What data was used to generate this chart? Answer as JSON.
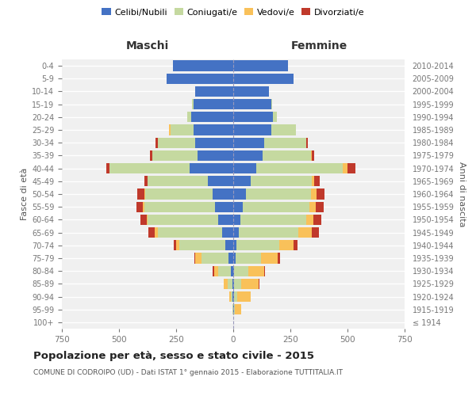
{
  "age_groups": [
    "100+",
    "95-99",
    "90-94",
    "85-89",
    "80-84",
    "75-79",
    "70-74",
    "65-69",
    "60-64",
    "55-59",
    "50-54",
    "45-49",
    "40-44",
    "35-39",
    "30-34",
    "25-29",
    "20-24",
    "15-19",
    "10-14",
    "5-9",
    "0-4"
  ],
  "birth_years": [
    "≤ 1914",
    "1915-1919",
    "1920-1924",
    "1925-1929",
    "1930-1934",
    "1935-1939",
    "1940-1944",
    "1945-1949",
    "1950-1954",
    "1955-1959",
    "1960-1964",
    "1965-1969",
    "1970-1974",
    "1975-1979",
    "1980-1984",
    "1985-1989",
    "1990-1994",
    "1995-1999",
    "2000-2004",
    "2005-2009",
    "2010-2014"
  ],
  "male": {
    "celibi": [
      0,
      1,
      3,
      5,
      10,
      20,
      35,
      50,
      65,
      80,
      90,
      110,
      190,
      155,
      165,
      175,
      185,
      175,
      165,
      290,
      265
    ],
    "coniugati": [
      0,
      2,
      8,
      20,
      55,
      120,
      200,
      280,
      310,
      310,
      295,
      265,
      350,
      200,
      165,
      100,
      15,
      5,
      0,
      0,
      0
    ],
    "vedovi": [
      0,
      0,
      5,
      15,
      20,
      25,
      15,
      15,
      5,
      5,
      5,
      0,
      0,
      0,
      0,
      5,
      0,
      0,
      0,
      0,
      0
    ],
    "divorziati": [
      0,
      0,
      0,
      0,
      5,
      5,
      10,
      25,
      25,
      30,
      30,
      15,
      15,
      10,
      10,
      0,
      0,
      0,
      0,
      0,
      0
    ]
  },
  "female": {
    "nubili": [
      0,
      3,
      3,
      5,
      5,
      10,
      15,
      25,
      30,
      40,
      55,
      75,
      100,
      130,
      135,
      165,
      175,
      165,
      155,
      265,
      240
    ],
    "coniugate": [
      0,
      5,
      15,
      30,
      60,
      110,
      185,
      260,
      290,
      295,
      285,
      270,
      380,
      210,
      185,
      110,
      15,
      5,
      0,
      0,
      0
    ],
    "vedove": [
      0,
      25,
      60,
      75,
      70,
      75,
      65,
      60,
      30,
      25,
      25,
      10,
      20,
      5,
      0,
      0,
      0,
      0,
      0,
      0,
      0
    ],
    "divorziate": [
      0,
      0,
      0,
      5,
      5,
      10,
      15,
      30,
      35,
      35,
      35,
      25,
      35,
      10,
      5,
      0,
      0,
      0,
      0,
      0,
      0
    ]
  },
  "colors": {
    "celibi": "#4472C4",
    "coniugati": "#C5D9A0",
    "vedovi": "#F9C15A",
    "divorziati": "#C0392B"
  },
  "xlim": 750,
  "title": "Popolazione per età, sesso e stato civile - 2015",
  "subtitle": "COMUNE DI CODROIPO (UD) - Dati ISTAT 1° gennaio 2015 - Elaborazione TUTTITALIA.IT",
  "xlabel_left": "Maschi",
  "xlabel_right": "Femmine",
  "ylabel_left": "Fasce di età",
  "ylabel_right": "Anni di nascita",
  "bg_color": "#f0f0f0",
  "grid_color": "#ffffff"
}
